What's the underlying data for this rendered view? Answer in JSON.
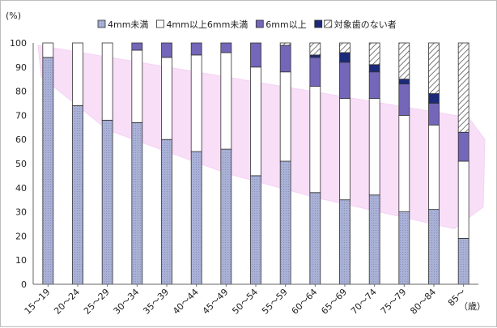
{
  "chart_data": {
    "type": "bar",
    "stacked": true,
    "y_unit": "(%)",
    "x_unit": "（歳）",
    "ylim": [
      0,
      100
    ],
    "yticks": [
      0,
      10,
      20,
      30,
      40,
      50,
      60,
      70,
      80,
      90,
      100
    ],
    "grid": false,
    "legend_position": "top",
    "categories": [
      "15～19",
      "20～24",
      "25～29",
      "30～34",
      "35～39",
      "40～44",
      "45～49",
      "50～54",
      "55～59",
      "60～64",
      "65～69",
      "70～74",
      "75～79",
      "80～84",
      "85～"
    ],
    "series": [
      {
        "name": "4mm未満",
        "color": "#a9b1d6",
        "pattern": "dotted",
        "values": [
          94,
          74,
          68,
          67,
          60,
          55,
          56,
          45,
          51,
          38,
          35,
          37,
          30,
          31,
          19
        ]
      },
      {
        "name": "4mm以上6mm未満",
        "color": "#ffffff",
        "pattern": "none",
        "values": [
          6,
          26,
          32,
          30,
          34,
          40,
          40,
          45,
          37,
          44,
          42,
          40,
          40,
          35,
          32
        ]
      },
      {
        "name": "6mm以上",
        "color": "#7466b8",
        "pattern": "none",
        "values": [
          0,
          0,
          0,
          3,
          6,
          5,
          4,
          10,
          11,
          12,
          15,
          11,
          13,
          9,
          12
        ]
      },
      {
        "name": "",
        "color": "#1c2a7a",
        "pattern": "none",
        "values": [
          0,
          0,
          0,
          0,
          0,
          0,
          0,
          0,
          0,
          1,
          4,
          3,
          2,
          4,
          0
        ]
      },
      {
        "name": "対象歯のない者",
        "color": "#ffffff",
        "pattern": "hatched",
        "values": [
          0,
          0,
          0,
          0,
          0,
          0,
          0,
          0,
          1,
          5,
          4,
          9,
          15,
          21,
          37
        ]
      }
    ],
    "highlight_color": "#f2b8f0"
  }
}
